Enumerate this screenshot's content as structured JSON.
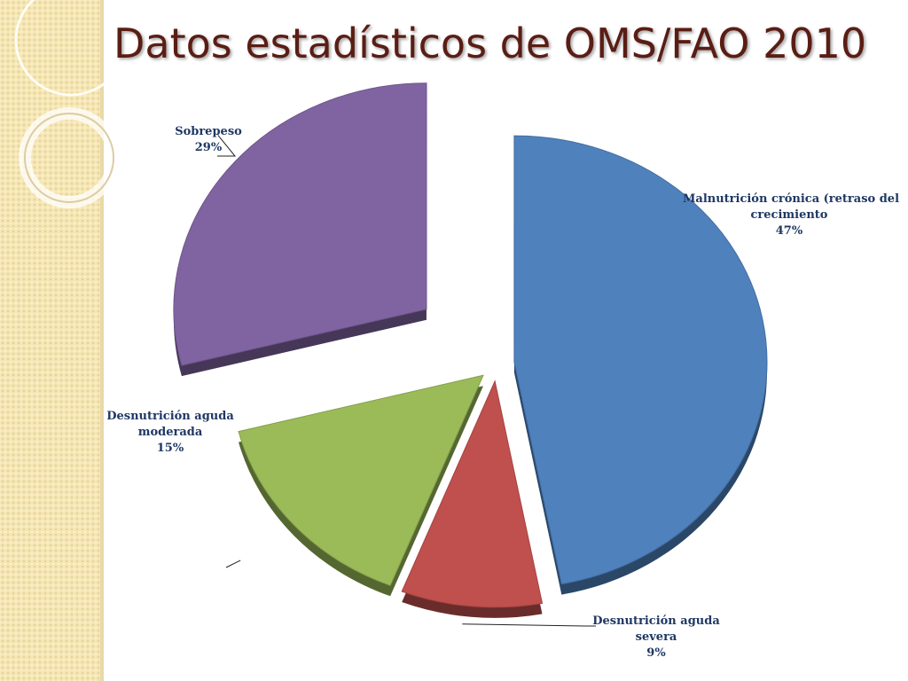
{
  "title": "Datos estadísticos de OMS/FAO 2010",
  "colors": {
    "title": "#5a1d14",
    "label_text": "#1f3864",
    "band": "#f5e6b4"
  },
  "chart_data": {
    "type": "pie",
    "title": "",
    "slices": [
      {
        "name": "Malnutrición crónica (retraso del crecimiento",
        "name_lines": [
          "Malnutrición crónica (retraso del",
          "crecimiento"
        ],
        "value": 47,
        "value_label": "47%",
        "color": "#4f81bd",
        "exploded": false
      },
      {
        "name": "Desnutrición aguda severa",
        "name_lines": [
          "Desnutrición aguda",
          "severa"
        ],
        "value": 9,
        "value_label": "9%",
        "color": "#c0504d",
        "exploded": false
      },
      {
        "name": "Desnutrición aguda moderada",
        "name_lines": [
          "Desnutrición aguda",
          "moderada"
        ],
        "value": 15,
        "value_label": "15%",
        "color": "#9bbb59",
        "exploded": false
      },
      {
        "name": "Sobrepeso",
        "name_lines": [
          "Sobrepeso"
        ],
        "value": 29,
        "value_label": "29%",
        "color": "#8064a2",
        "exploded": true
      }
    ],
    "legend": "none",
    "data_labels": "outside with leader lines"
  }
}
